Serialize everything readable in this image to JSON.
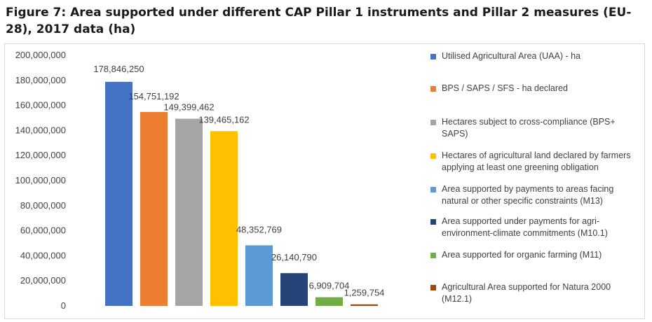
{
  "title": "Figure 7: Area supported under different CAP Pillar 1 instruments and Pillar 2 measures (EU-28), 2017 data (ha)",
  "chart_data": {
    "type": "bar",
    "title": "Figure 7: Area supported under different CAP Pillar 1 instruments and Pillar 2 measures (EU-28), 2017 data (ha)",
    "xlabel": "",
    "ylabel": "",
    "ylim": [
      0,
      200000000
    ],
    "yticks": [
      0,
      20000000,
      40000000,
      60000000,
      80000000,
      100000000,
      120000000,
      140000000,
      160000000,
      180000000,
      200000000
    ],
    "ytick_labels": [
      "0",
      "20,000,000",
      "40,000,000",
      "60,000,000",
      "80,000,000",
      "100,000,000",
      "120,000,000",
      "140,000,000",
      "160,000,000",
      "180,000,000",
      "200,000,000"
    ],
    "grid": false,
    "legend_position": "right",
    "series": [
      {
        "name": "Utilised Agricultural Area (UAA) - ha",
        "value": 178846250,
        "label": "178,846,250",
        "color": "#4472c4"
      },
      {
        "name": "BPS / SAPS / SFS - ha declared",
        "value": 154751192,
        "label": "154,751,192",
        "color": "#ed7d31"
      },
      {
        "name": "Hectares subject to cross-compliance (BPS+ SAPS)",
        "value": 149399462,
        "label": "149,399,462",
        "color": "#a5a5a5"
      },
      {
        "name": "Hectares of agricultural land declared by farmers applying at least one greening obligation",
        "value": 139465162,
        "label": "139,465,162",
        "color": "#ffc000"
      },
      {
        "name": "Area supported by payments to areas facing natural or other specific constraints (M13)",
        "value": 48352769,
        "label": "48,352,769",
        "color": "#5b9bd5"
      },
      {
        "name": "Area supported under payments for agri-environment-climate commitments (M10.1)",
        "value": 26140790,
        "label": "26,140,790",
        "color": "#264478"
      },
      {
        "name": "Area supported for organic farming (M11)",
        "value": 6909704,
        "label": "6,909,704",
        "color": "#70ad47"
      },
      {
        "name": "Agricultural Area supported for Natura 2000 (M12.1)",
        "value": 1259754,
        "label": "1,259,754",
        "color": "#9e480e"
      }
    ]
  }
}
